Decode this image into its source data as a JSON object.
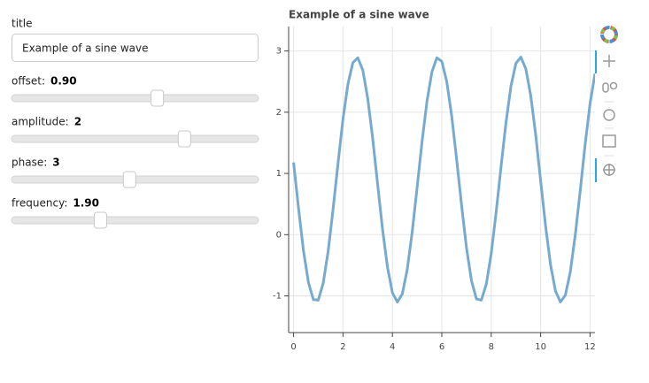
{
  "widgets": {
    "title_input": {
      "label": "title",
      "value": "Example of a sine wave"
    },
    "sliders": [
      {
        "label": "offset:",
        "value": 0.9,
        "value_label": "0.90",
        "start": -5,
        "end": 5
      },
      {
        "label": "amplitude:",
        "value": 2,
        "start": -5,
        "end": 5
      },
      {
        "label": "phase:",
        "value": 3,
        "start": 0,
        "end": 6.28
      },
      {
        "label": "frequency:",
        "value": 1.9,
        "value_label": "1.90",
        "start": 0.1,
        "end": 5.1
      }
    ]
  },
  "chart_data": {
    "type": "line",
    "title": "Example of a sine wave",
    "x": [
      0,
      0.2,
      0.4,
      0.6,
      0.8,
      1,
      1.2,
      1.4,
      1.6,
      1.8,
      2,
      2.2,
      2.4,
      2.6,
      2.8,
      3,
      3.2,
      3.4,
      3.6,
      3.8,
      4,
      4.2,
      4.4,
      4.6,
      4.8,
      5,
      5.2,
      5.4,
      5.6,
      5.8,
      6,
      6.2,
      6.4,
      6.6,
      6.8,
      7,
      7.2,
      7.4,
      7.6,
      7.8,
      8,
      8.2,
      8.4,
      8.6,
      8.8,
      9,
      9.2,
      9.4,
      9.6,
      9.8,
      10,
      10.2,
      10.4,
      10.6,
      10.8,
      11,
      11.2,
      11.4,
      11.6,
      11.8,
      12,
      12.2
    ],
    "series": [
      {
        "color": "#76abcf",
        "values": [
          1.18,
          0.43,
          -0.26,
          -0.78,
          -1.06,
          -1.07,
          -0.79,
          -0.27,
          0.42,
          1.17,
          1.89,
          2.46,
          2.81,
          2.89,
          2.69,
          2.23,
          1.58,
          0.83,
          0.09,
          -0.53,
          -0.95,
          -1.1,
          -0.97,
          -0.57,
          0.04,
          0.77,
          1.52,
          2.18,
          2.66,
          2.89,
          2.83,
          2.5,
          1.94,
          1.23,
          0.48,
          -0.22,
          -0.75,
          -1.05,
          -1.07,
          -0.81,
          -0.31,
          0.37,
          1.12,
          1.84,
          2.43,
          2.8,
          2.9,
          2.71,
          2.27,
          1.63,
          0.88,
          0.14,
          -0.49,
          -0.92,
          -1.1,
          -0.99,
          -0.61,
          -0.01,
          0.71,
          1.47,
          2.14,
          2.63
        ]
      }
    ],
    "xlim": [
      -0.2,
      12.2
    ],
    "ylim": [
      -1.6,
      3.4
    ],
    "xticks": [
      0,
      2,
      4,
      6,
      8,
      10,
      12
    ],
    "yticks": [
      -1,
      0,
      1,
      2,
      3
    ],
    "grid": true
  }
}
